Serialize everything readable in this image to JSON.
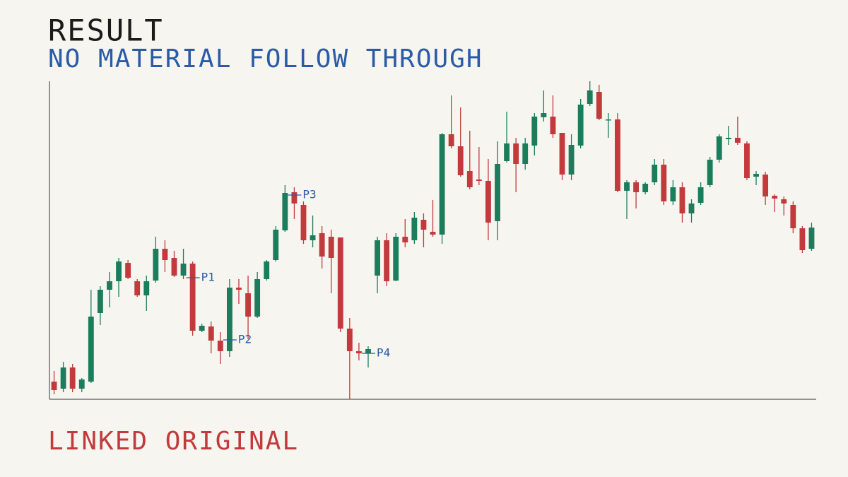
{
  "chart_data": {
    "type": "candlestick",
    "title": "RESULT",
    "subtitle": "NO MATERIAL FOLLOW THROUGH",
    "categories": [
      null,
      null,
      null,
      null,
      null,
      null,
      null,
      null,
      null,
      null,
      null,
      null,
      null,
      null,
      null,
      null,
      null,
      null,
      null,
      null,
      null,
      null,
      null,
      null,
      null,
      null,
      null,
      null,
      null,
      null,
      null,
      null,
      null,
      null,
      null,
      null,
      null,
      null,
      null,
      null,
      null,
      null,
      null,
      null,
      null,
      null,
      null,
      null,
      null,
      null,
      null,
      null,
      null,
      null,
      null,
      null,
      null,
      null,
      null,
      null,
      null,
      null,
      null,
      null,
      null,
      null,
      null,
      null,
      null,
      null,
      null,
      null,
      null,
      null,
      null,
      null,
      null,
      null,
      null,
      null,
      null,
      null,
      null
    ],
    "open": [
      2.5,
      1.5,
      4.5,
      1.5,
      2.5,
      12.2,
      15.5,
      16.7,
      19.3,
      16.7,
      14.7,
      16.8,
      21.3,
      20.0,
      17.5,
      19.2,
      9.7,
      10.3,
      8.3,
      6.8,
      15.8,
      15.0,
      11.7,
      17.0,
      19.7,
      23.9,
      29.3,
      27.5,
      22.5,
      23.5,
      23.0,
      22.9,
      10.0,
      6.8,
      6.5,
      17.5,
      22.5,
      16.8,
      23.0,
      22.5,
      25.4,
      23.7,
      23.3,
      37.5,
      35.8,
      32.3,
      31.1,
      30.9,
      25.2,
      33.7,
      36.2,
      33.3,
      35.9,
      39.9,
      40.0,
      37.7,
      31.8,
      35.9,
      41.8,
      43.5,
      39.5,
      39.6,
      29.5,
      30.7,
      29.3,
      30.7,
      33.2,
      28.0,
      30.0,
      26.3,
      27.8,
      30.3,
      33.9,
      36.8,
      37.0,
      36.2,
      31.5,
      31.8,
      28.8,
      28.3,
      27.5,
      24.2,
      21.3
    ],
    "high": [
      4.0,
      5.3,
      5.0,
      3.0,
      15.5,
      16.0,
      18.0,
      20.0,
      19.7,
      17.0,
      17.5,
      23.0,
      22.5,
      21.0,
      21.3,
      19.5,
      10.7,
      11.0,
      9.5,
      17.0,
      17.0,
      17.5,
      18.0,
      19.7,
      24.5,
      30.3,
      30.0,
      28.0,
      26.0,
      24.5,
      24.0,
      22.9,
      11.5,
      8.0,
      7.5,
      23.0,
      23.5,
      23.5,
      25.5,
      26.5,
      26.3,
      28.2,
      37.7,
      43.0,
      41.3,
      38.0,
      35.7,
      34.0,
      36.5,
      40.7,
      37.0,
      37.0,
      40.5,
      43.7,
      43.0,
      37.7,
      37.5,
      42.5,
      45.0,
      44.5,
      40.5,
      40.5,
      31.0,
      31.0,
      30.7,
      34.0,
      34.0,
      31.0,
      30.7,
      28.3,
      30.7,
      34.3,
      37.5,
      38.7,
      40.0,
      36.5,
      32.3,
      32.2,
      29.0,
      28.7,
      28.0,
      24.5,
      25.0
    ],
    "low": [
      0.7,
      1.0,
      1.0,
      1.0,
      2.3,
      10.5,
      13.0,
      14.5,
      17.0,
      14.5,
      12.5,
      16.5,
      18.0,
      17.3,
      17.0,
      9.0,
      9.5,
      6.5,
      5.0,
      6.0,
      13.5,
      8.5,
      11.5,
      16.8,
      19.5,
      23.7,
      25.5,
      22.0,
      21.5,
      18.5,
      15.0,
      9.5,
      0.0,
      5.5,
      4.5,
      15.0,
      16.0,
      16.7,
      21.5,
      22.0,
      21.5,
      23.0,
      22.0,
      35.5,
      31.5,
      29.7,
      30.3,
      22.5,
      22.5,
      33.5,
      29.3,
      32.5,
      34.5,
      39.3,
      37.0,
      31.0,
      31.0,
      35.5,
      41.5,
      39.5,
      37.0,
      29.3,
      25.5,
      27.0,
      29.0,
      30.3,
      27.5,
      27.5,
      25.0,
      25.0,
      27.5,
      30.0,
      33.5,
      36.0,
      36.0,
      31.0,
      30.3,
      27.5,
      26.5,
      26.0,
      23.5,
      20.7,
      21.0
    ],
    "close": [
      1.3,
      4.5,
      1.5,
      2.8,
      11.7,
      15.5,
      16.7,
      19.5,
      17.2,
      14.7,
      16.7,
      21.3,
      19.7,
      17.5,
      19.2,
      9.7,
      10.4,
      8.3,
      6.8,
      15.8,
      15.5,
      11.7,
      17.0,
      19.5,
      24.0,
      29.2,
      27.7,
      22.5,
      23.2,
      20.2,
      20.0,
      10.0,
      6.8,
      6.5,
      7.1,
      22.5,
      16.7,
      23.0,
      22.2,
      25.7,
      24.0,
      23.3,
      37.5,
      35.8,
      31.7,
      30.0,
      30.9,
      25.0,
      33.3,
      36.2,
      33.3,
      36.2,
      40.0,
      40.5,
      37.5,
      31.8,
      36.0,
      41.7,
      43.7,
      39.7,
      39.6,
      29.5,
      30.7,
      29.3,
      30.5,
      33.2,
      28.0,
      30.0,
      26.3,
      27.7,
      30.0,
      33.9,
      37.2,
      37.0,
      36.3,
      31.3,
      31.9,
      28.7,
      28.4,
      27.7,
      24.2,
      21.1,
      24.3
    ],
    "up_color": "#1b7d5c",
    "down_color": "#c23a3c",
    "ylim": [
      0,
      45
    ],
    "annotations": [
      {
        "label": "P1",
        "index": 15,
        "value": 17.2
      },
      {
        "label": "P2",
        "index": 19,
        "value": 8.4
      },
      {
        "label": "P3",
        "index": 26,
        "value": 28.9
      },
      {
        "label": "P4",
        "index": 34,
        "value": 6.5
      }
    ],
    "caption": "LINKED ORIGINAL"
  }
}
